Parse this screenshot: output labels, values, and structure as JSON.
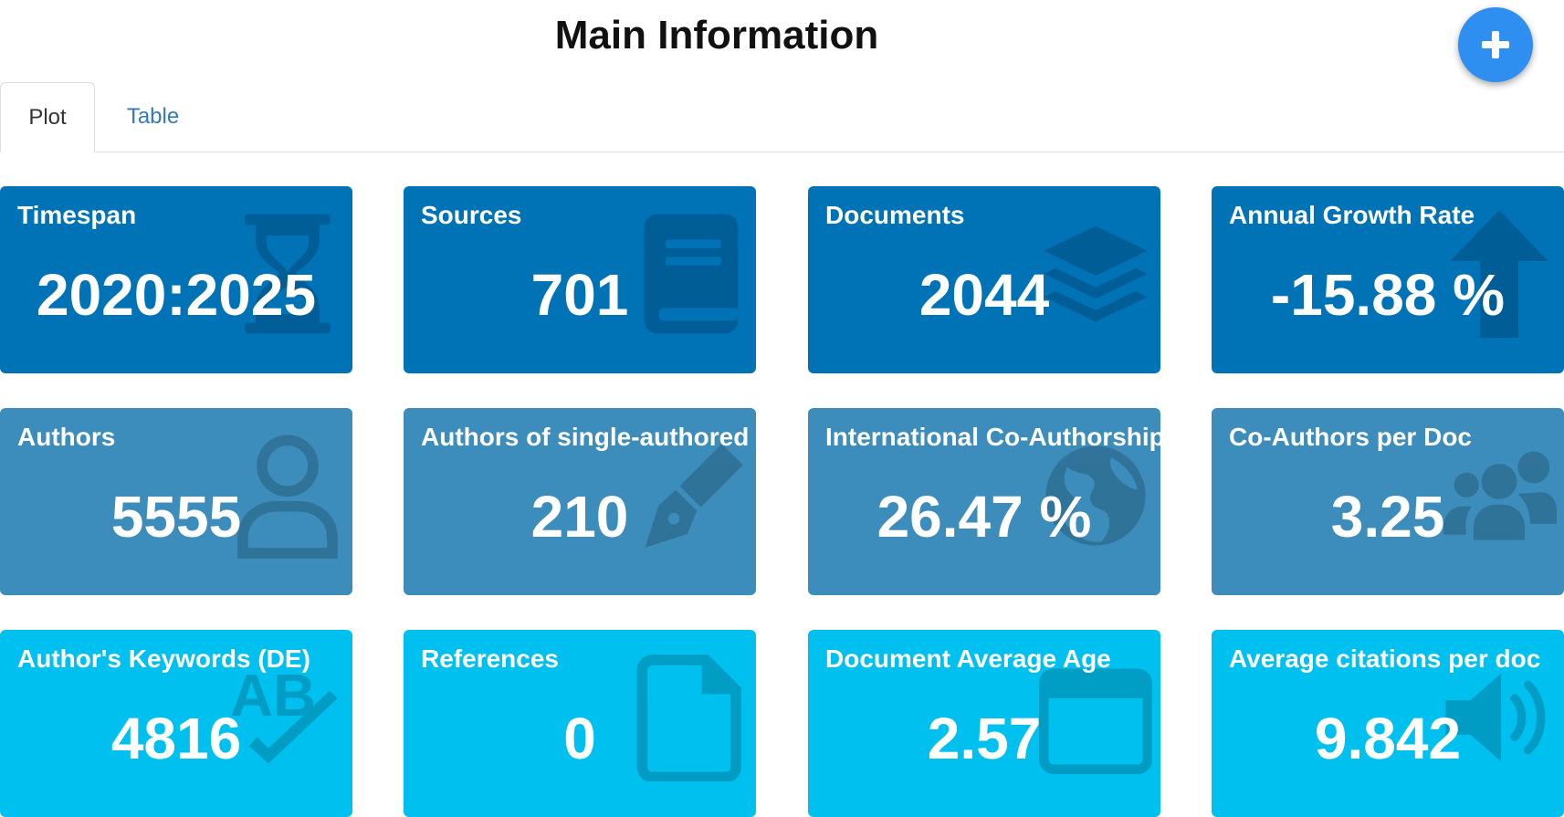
{
  "header": {
    "title": "Main Information"
  },
  "fab": {
    "icon": "plus-icon"
  },
  "tabs": [
    {
      "label": "Plot",
      "active": true
    },
    {
      "label": "Table",
      "active": false
    }
  ],
  "colors": {
    "dark_blue": "#0073b7",
    "medium_blue": "#3c8dbc",
    "light_blue": "#00c0ef",
    "fab": "#2f8ff0",
    "tab_link": "#337ab7"
  },
  "boxes": [
    {
      "label": "Timespan",
      "value": "2020:2025",
      "icon": "hourglass-icon"
    },
    {
      "label": "Sources",
      "value": "701",
      "icon": "book-icon"
    },
    {
      "label": "Documents",
      "value": "2044",
      "icon": "layers-icon"
    },
    {
      "label": "Annual Growth Rate",
      "value": "-15.88 %",
      "icon": "arrow-up-icon"
    },
    {
      "label": "Authors",
      "value": "5555",
      "icon": "user-icon"
    },
    {
      "label": "Authors of single-authored docs",
      "value": "210",
      "icon": "pen-nib-icon"
    },
    {
      "label": "International Co-Authorship",
      "value": "26.47 %",
      "icon": "globe-icon"
    },
    {
      "label": "Co-Authors per Doc",
      "value": "3.25",
      "icon": "users-icon"
    },
    {
      "label": "Author's Keywords (DE)",
      "value": "4816",
      "icon": "spell-check-icon"
    },
    {
      "label": "References",
      "value": "0",
      "icon": "file-icon"
    },
    {
      "label": "Document Average Age",
      "value": "2.57",
      "icon": "calendar-icon"
    },
    {
      "label": "Average citations per doc",
      "value": "9.842",
      "icon": "volume-icon"
    }
  ]
}
